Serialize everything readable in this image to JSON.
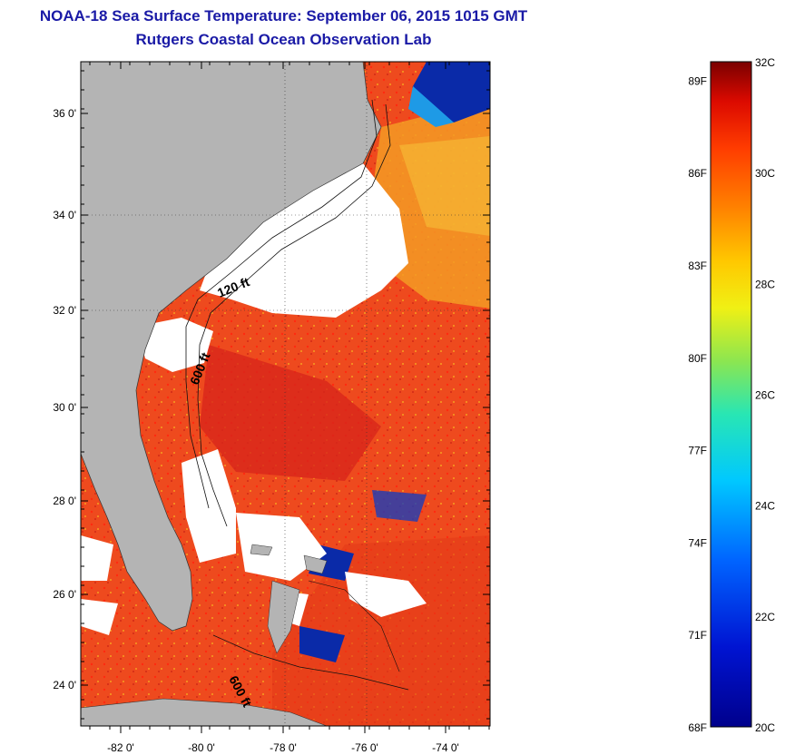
{
  "header": {
    "title": "NOAA-18 Sea Surface Temperature:  September 06, 2015 1015 GMT",
    "subtitle": "Rutgers Coastal Ocean Observation Lab"
  },
  "map": {
    "lat_labels": [
      "36 0'",
      "34 0'",
      "32 0'",
      "30 0'",
      "28 0'",
      "26 0'",
      "24 0'"
    ],
    "lon_labels": [
      "-82 0'",
      "-80 0'",
      "-78 0'",
      "-76 0'",
      "-74 0'"
    ],
    "isobath_labels": [
      "120 ft",
      "600 ft",
      "600 ft"
    ],
    "colors": {
      "land": "#b4b4b4",
      "cloud": "#ffffff",
      "warm": "#ef3a1a",
      "hot": "#d81e10",
      "orange": "#f08a1e",
      "yellow": "#f5d21e",
      "cool_green": "#7ad04a",
      "cold_blue": "#0a2aa8"
    }
  },
  "colorbar": {
    "celsius_labels": [
      "32C",
      "30C",
      "28C",
      "26C",
      "24C",
      "22C",
      "20C"
    ],
    "fahrenheit_labels": [
      "89F",
      "86F",
      "83F",
      "80F",
      "77F",
      "74F",
      "71F",
      "68F"
    ],
    "range_c": [
      20,
      32
    ]
  }
}
